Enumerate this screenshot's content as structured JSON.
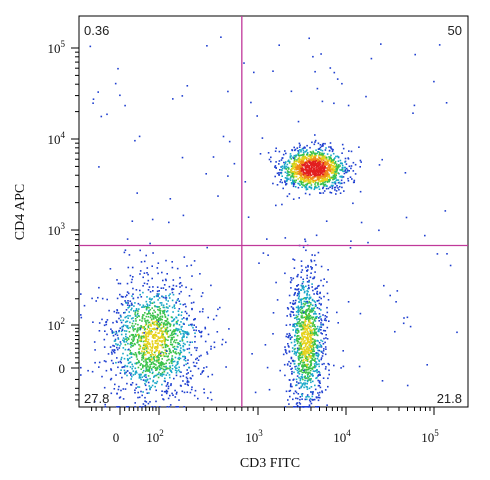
{
  "chart_data": {
    "type": "scatter",
    "subtype": "flow-cytometry density dot plot (biexponential axes)",
    "title": "",
    "xlabel": "CD3 FITC",
    "ylabel": "CD4 APC",
    "x_scale": "biexponential",
    "y_scale": "biexponential",
    "x_ticks": [
      {
        "base": "0",
        "exp": ""
      },
      {
        "base": "10",
        "exp": "2"
      },
      {
        "base": "10",
        "exp": "3"
      },
      {
        "base": "10",
        "exp": "4"
      },
      {
        "base": "10",
        "exp": "5"
      }
    ],
    "y_ticks": [
      {
        "base": "0",
        "exp": ""
      },
      {
        "base": "10",
        "exp": "2"
      },
      {
        "base": "10",
        "exp": "3"
      },
      {
        "base": "10",
        "exp": "4"
      },
      {
        "base": "10",
        "exp": "5"
      }
    ],
    "gate": {
      "x": 700,
      "y": 700,
      "color": "#c0389a"
    },
    "quadrants": {
      "upper_left": "0.36",
      "upper_right": "50",
      "lower_left": "27.8",
      "lower_right": "21.8"
    },
    "populations": [
      {
        "name": "",
        "x_center": 80,
        "y_center": 60,
        "x_spread": "wide",
        "y_spread": "wide",
        "share_percent": 27.8
      },
      {
        "name": "",
        "x_center": 3500,
        "y_center": 60,
        "x_spread": "narrow",
        "y_spread": "tall",
        "share_percent": 21.8
      },
      {
        "name": "",
        "x_center": 4200,
        "y_center": 4800,
        "x_spread": "narrow",
        "y_spread": "narrow",
        "share_percent": 50
      }
    ],
    "density_colors": [
      "#1f3fd0",
      "#1aa8c8",
      "#3bc24a",
      "#e6d21c",
      "#f08a18",
      "#e21f1f"
    ],
    "grid": false,
    "legend": "none"
  }
}
